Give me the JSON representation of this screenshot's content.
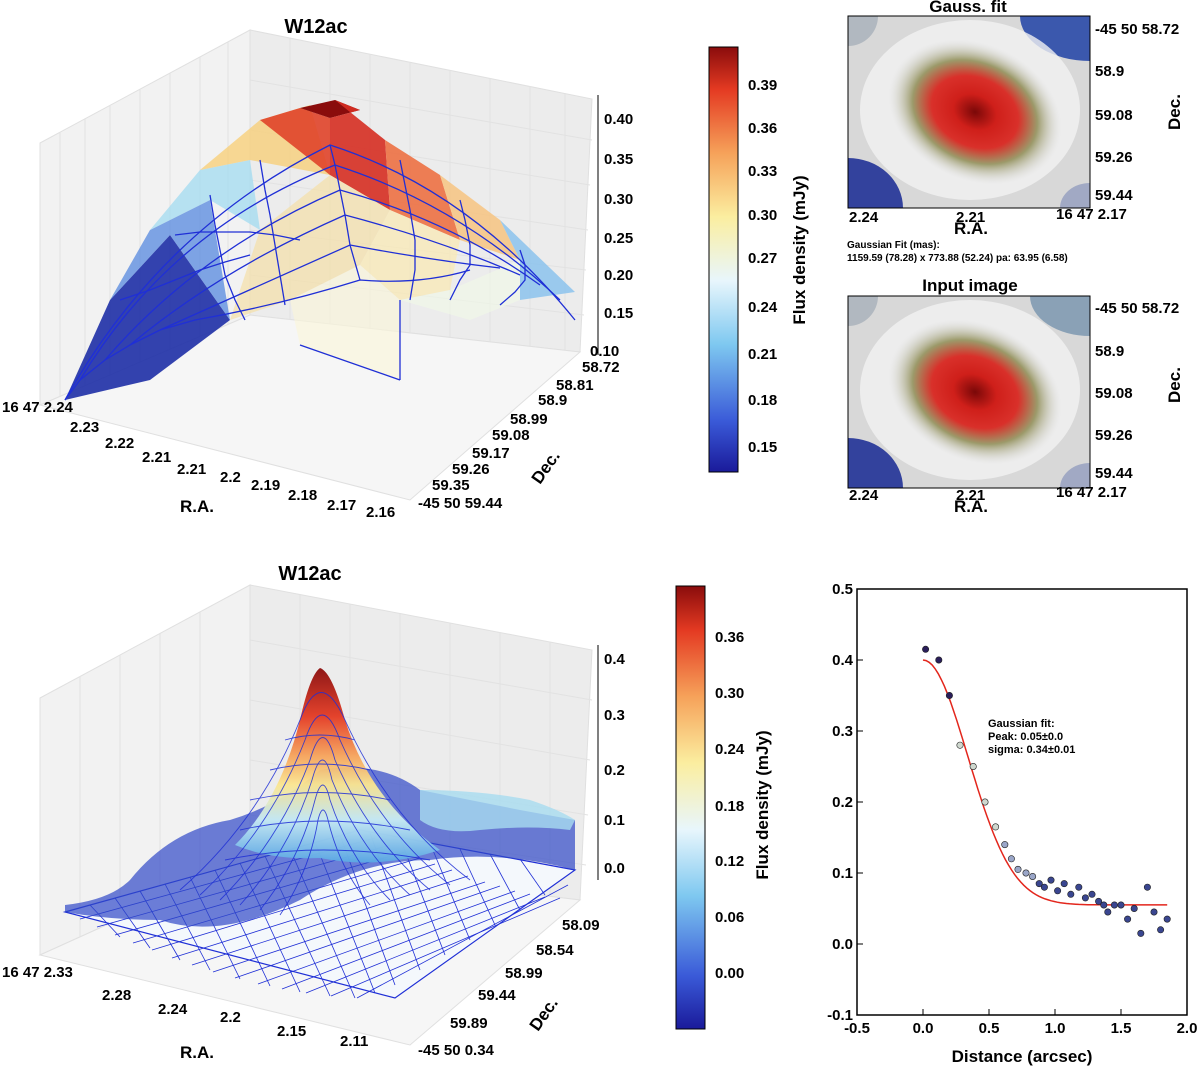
{
  "figure": {
    "panel_a": {
      "title": "W12ac",
      "xlabel": "R.A.",
      "ylabel": "Dec.",
      "x_ticks": [
        "16 47 2.24",
        "2.23",
        "2.22",
        "2.21",
        "2.21",
        "2.2",
        "2.19",
        "2.18",
        "2.17",
        "2.16"
      ],
      "y_ticks": [
        "58.72",
        "58.81",
        "58.9",
        "58.99",
        "59.08",
        "59.17",
        "59.26",
        "59.35",
        "-45 50 59.44"
      ],
      "z_ticks": [
        "0.40",
        "0.35",
        "0.30",
        "0.25",
        "0.20",
        "0.15",
        "0.10"
      ],
      "colorbar_label": "Flux density (mJy)",
      "colorbar_ticks": [
        "0.39",
        "0.36",
        "0.33",
        "0.30",
        "0.27",
        "0.24",
        "0.21",
        "0.18",
        "0.15"
      ]
    },
    "panel_b": {
      "title": "Gauss. fit",
      "xlabel": "R.A.",
      "ylabel": "Dec.",
      "x_ticks": [
        "2.24",
        "2.21",
        "16 47 2.17"
      ],
      "y_ticks": [
        "-45 50 58.72",
        "58.9",
        "59.08",
        "59.26",
        "59.44"
      ],
      "fit_caption_1": "Gaussian Fit (mas):",
      "fit_caption_2": "1159.59 (78.28) x 773.88 (52.24) pa: 63.95 (6.58)"
    },
    "panel_c": {
      "title": "Input image",
      "xlabel": "R.A.",
      "ylabel": "Dec.",
      "x_ticks": [
        "2.24",
        "2.21",
        "16 47 2.17"
      ],
      "y_ticks": [
        "-45 50 58.72",
        "58.9",
        "59.08",
        "59.26",
        "59.44"
      ]
    },
    "panel_d": {
      "title": "W12ac",
      "xlabel": "R.A.",
      "ylabel": "Dec.",
      "x_ticks": [
        "16 47 2.33",
        "2.28",
        "2.24",
        "2.2",
        "2.15",
        "2.11"
      ],
      "y_ticks": [
        "58.09",
        "58.54",
        "58.99",
        "59.44",
        "59.89",
        "-45 50 0.34"
      ],
      "z_ticks": [
        "0.4",
        "0.3",
        "0.2",
        "0.1",
        "0.0"
      ],
      "colorbar_label": "Flux density (mJy)",
      "colorbar_ticks": [
        "0.36",
        "0.30",
        "0.24",
        "0.18",
        "0.12",
        "0.06",
        "0.00"
      ]
    },
    "panel_e": {
      "xlabel": "Distance (arcsec)",
      "x_ticks": [
        "-0.5",
        "0.0",
        "0.5",
        "1.0",
        "1.5",
        "2.0"
      ],
      "y_ticks": [
        "0.5",
        "0.4",
        "0.3",
        "0.2",
        "0.1",
        "0.0",
        "-0.1"
      ],
      "annotation_1": "Gaussian fit:",
      "annotation_2": "Peak: 0.05±0.0",
      "annotation_3": "sigma: 0.34±0.01"
    },
    "colors": {
      "fit_line": "#e3261c",
      "mesh": "#1f2fd6",
      "cmap_high": "#7f0000",
      "cmap_low": "#00007f"
    }
  },
  "chart_data": [
    {
      "type": "surface3d",
      "title": "W12ac",
      "xlabel": "R.A.",
      "ylabel": "Dec.",
      "zlabel": "Flux density (mJy)",
      "zlim": [
        0.1,
        0.4
      ],
      "x_range": [
        "16 47 2.24",
        "2.16"
      ],
      "y_range": [
        "58.72",
        "-45 50 59.44"
      ],
      "peak": 0.41,
      "min": 0.12
    },
    {
      "type": "heatmap",
      "title": "Gauss. fit",
      "xlabel": "R.A.",
      "ylabel": "Dec.",
      "fit_major_mas": 1159.59,
      "fit_major_err": 78.28,
      "fit_minor_mas": 773.88,
      "fit_minor_err": 52.24,
      "pa": 63.95,
      "pa_err": 6.58
    },
    {
      "type": "heatmap",
      "title": "Input image",
      "xlabel": "R.A.",
      "ylabel": "Dec."
    },
    {
      "type": "surface3d",
      "title": "W12ac",
      "xlabel": "R.A.",
      "ylabel": "Dec.",
      "zlabel": "Flux density (mJy)",
      "zlim": [
        0.0,
        0.4
      ],
      "x_range": [
        "16 47 2.33",
        "2.11"
      ],
      "y_range": [
        "58.09",
        "-45 50 0.34"
      ],
      "peak": 0.41
    },
    {
      "type": "scatter",
      "xlabel": "Distance (arcsec)",
      "ylabel": "",
      "xlim": [
        -0.5,
        2.0
      ],
      "ylim": [
        -0.1,
        0.5
      ],
      "x": [
        0.02,
        0.12,
        0.2,
        0.28,
        0.38,
        0.47,
        0.55,
        0.62,
        0.67,
        0.72,
        0.78,
        0.83,
        0.88,
        0.92,
        0.97,
        1.02,
        1.07,
        1.12,
        1.18,
        1.23,
        1.28,
        1.33,
        1.37,
        1.4,
        1.45,
        1.5,
        1.55,
        1.6,
        1.65,
        1.7,
        1.75,
        1.8,
        1.85
      ],
      "y": [
        0.415,
        0.4,
        0.35,
        0.28,
        0.25,
        0.2,
        0.165,
        0.14,
        0.12,
        0.105,
        0.1,
        0.095,
        0.085,
        0.08,
        0.09,
        0.075,
        0.085,
        0.07,
        0.08,
        0.065,
        0.07,
        0.06,
        0.055,
        0.045,
        0.055,
        0.055,
        0.035,
        0.05,
        0.015,
        0.08,
        0.045,
        0.02,
        0.035
      ],
      "fit": {
        "model": "gaussian",
        "offset": 0.055,
        "amp": 0.345,
        "sigma": 0.34
      }
    }
  ]
}
